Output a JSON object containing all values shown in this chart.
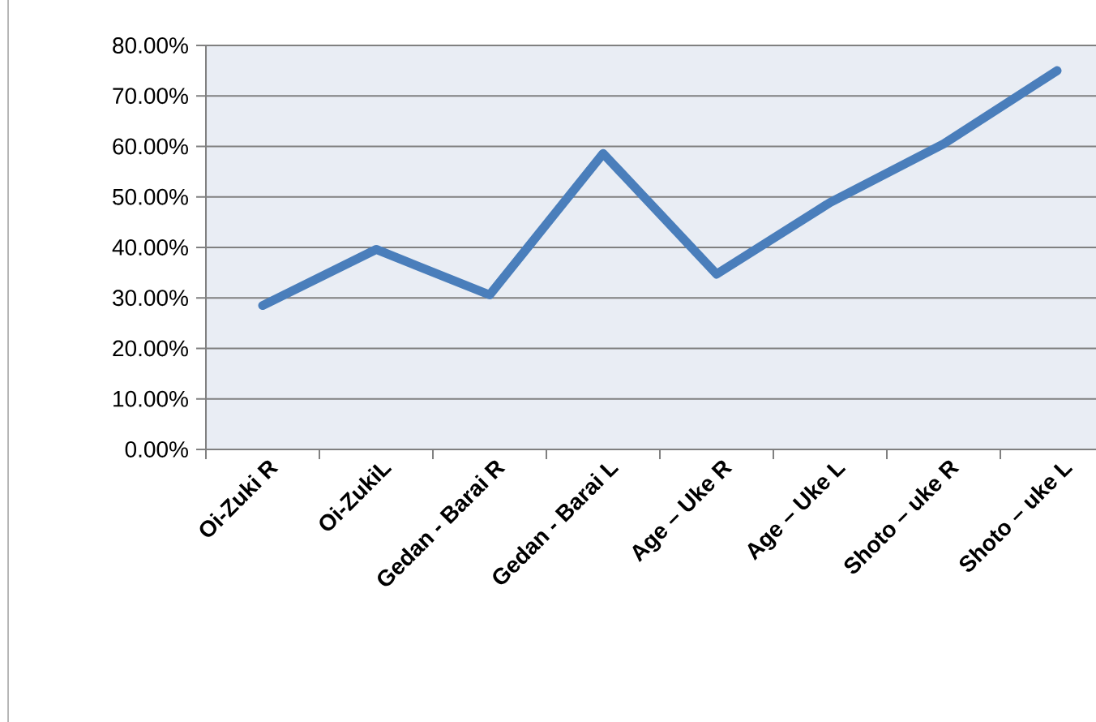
{
  "chart_data": {
    "type": "line",
    "categories": [
      "Oi-Zuki R",
      "Oi-ZukiL",
      "Gedan - Barai R",
      "Gedan - Barai L",
      "Age – Uke R",
      "Age – Uke L",
      "Shoto – uke R",
      "Shoto – uke L"
    ],
    "series": [
      {
        "color": "#4a7ebb",
        "values": [
          28.5,
          39.6,
          30.6,
          58.6,
          34.7,
          48.9,
          60.5,
          75.0
        ]
      }
    ],
    "ylim": [
      0,
      80
    ],
    "yticks": [
      {
        "value": 0,
        "label": "0.00%"
      },
      {
        "value": 10,
        "label": "10.00%"
      },
      {
        "value": 20,
        "label": "20.00%"
      },
      {
        "value": 30,
        "label": "30.00%"
      },
      {
        "value": 40,
        "label": "40.00%"
      },
      {
        "value": 50,
        "label": "50.00%"
      },
      {
        "value": 60,
        "label": "60.00%"
      },
      {
        "value": 70,
        "label": "70.00%"
      },
      {
        "value": 80,
        "label": "80.00%"
      }
    ],
    "grid": "y",
    "marker": "none",
    "line_style": "solid"
  }
}
